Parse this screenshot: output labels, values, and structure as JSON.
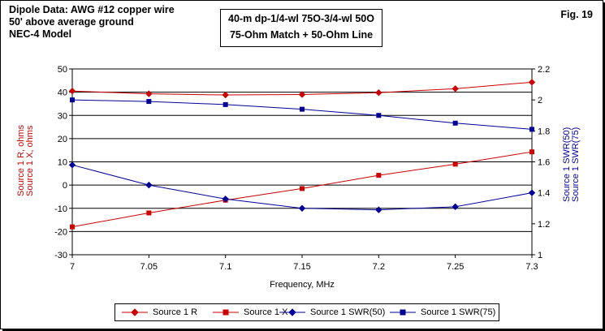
{
  "header": {
    "line1": "Dipole Data:  AWG #12 copper wire",
    "line2": "50' above average ground",
    "line3": "NEC-4 Model"
  },
  "config": {
    "line1": "40-m dp-1/4-wl 75O-3/4-wl 50O",
    "line2": "75-Ohm Match + 50-Ohm Line"
  },
  "figure_label": "Fig. 19",
  "colors": {
    "red_series": "#cc0000",
    "blue_series": "#000099"
  },
  "chart_data": {
    "type": "line",
    "xlabel": "Frequency, MHz",
    "ylabel_left": [
      "Source 1 R, ohms",
      "Source 1 X, ohms"
    ],
    "ylabel_right": [
      "Source 1 SWR(50)",
      "Source 1 SWR(75)"
    ],
    "x": [
      7,
      7.05,
      7.1,
      7.15,
      7.2,
      7.25,
      7.3
    ],
    "x_ticks": [
      "7",
      "7.05",
      "7.1",
      "7.15",
      "7.2",
      "7.25",
      "7.3"
    ],
    "xlim": [
      7,
      7.3
    ],
    "ylim_left": [
      -30,
      50
    ],
    "y_left_ticks": [
      "50",
      "40",
      "30",
      "20",
      "10",
      "0",
      "-10",
      "-20",
      "-30"
    ],
    "ylim_right": [
      1,
      2.2
    ],
    "y_right_ticks": [
      "2.2",
      "2",
      "1.8",
      "1.6",
      "1.4",
      "1.2",
      "1"
    ],
    "grid": "horizontal",
    "legend_position": "bottom",
    "series": [
      {
        "name": "Source 1 R",
        "axis": "left",
        "marker": "diamond",
        "color": "#cc0000",
        "values": [
          40.5,
          39.3,
          38.8,
          39.0,
          39.8,
          41.5,
          44.3
        ]
      },
      {
        "name": "Source 1 X",
        "axis": "left",
        "marker": "square",
        "color": "#cc0000",
        "values": [
          -18.0,
          -12.0,
          -6.5,
          -1.5,
          4.2,
          9.0,
          14.3
        ]
      },
      {
        "name": "Source 1 SWR(50)",
        "axis": "right",
        "marker": "diamond",
        "color": "#000099",
        "values": [
          1.58,
          1.45,
          1.36,
          1.3,
          1.29,
          1.31,
          1.4
        ]
      },
      {
        "name": "Source 1 SWR(75)",
        "axis": "right",
        "marker": "square",
        "color": "#000099",
        "values": [
          2.0,
          1.99,
          1.97,
          1.94,
          1.9,
          1.85,
          1.81
        ]
      }
    ]
  }
}
